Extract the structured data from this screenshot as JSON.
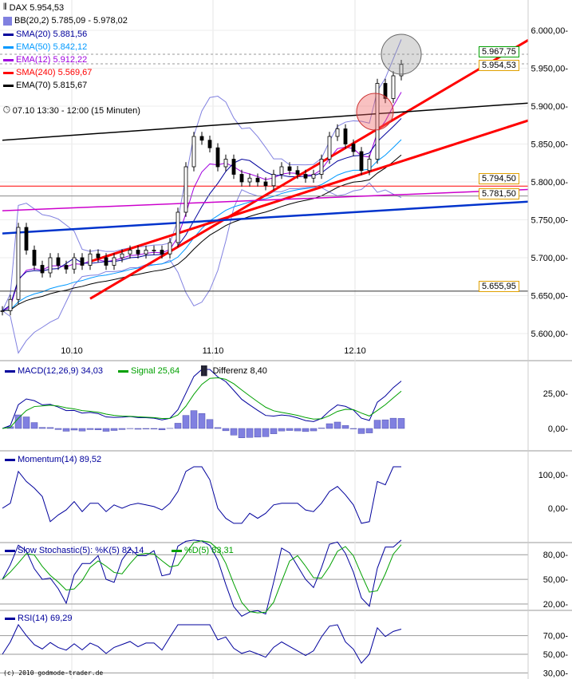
{
  "legend": {
    "dax": "DAX 5.954,53",
    "bb": "BB(20,2) 5.785,09 - 5.978,02",
    "sma20": "SMA(20) 5.881,56",
    "ema50": "EMA(50) 5.842,12",
    "ema12": "EMA(12) 5.912,22",
    "sma240": "SMA(240) 5.569,67",
    "ema70": "EMA(70) 5.815,67",
    "period": "07.10 13:30 - 12:00 (15 Minuten)",
    "macd": "MACD(12,26,9) 34,03",
    "signal": "Signal 25,64",
    "diff": "Differenz 8,40",
    "momentum": "Momentum(14) 89,52",
    "stoch_k": "Slow Stochastic(5): %K(5) 82,14",
    "stoch_d": "%D(5) 83,31",
    "rsi": "RSI(14) 69,29"
  },
  "colors": {
    "sma20": "#00009c",
    "ema50": "#0099ff",
    "ema12": "#a000e0",
    "sma240": "#ff0000",
    "ema70": "#000000",
    "bb": "#8080e0",
    "signal": "#00a000",
    "up_fill": "#a0e0a0",
    "down_fill": "#e0a0a0"
  },
  "price_tags": [
    "5.967,75",
    "5.954,53",
    "5.794,50",
    "5.781,50",
    "5.655,95"
  ],
  "copyright": "(c) 2010 godmode-trader.de",
  "chart_data": {
    "type": "candlestick",
    "x_ticks": [
      "10.10",
      "11.10",
      "12.10"
    ],
    "y_ticks": [
      "6.000,00",
      "5.950,00",
      "5.900,00",
      "5.850,00",
      "5.800,00",
      "5.750,00",
      "5.700,00",
      "5.650,00",
      "5.600,00"
    ],
    "ylim": [
      5590,
      6040
    ],
    "close": [
      5630,
      5645,
      5740,
      5710,
      5690,
      5680,
      5700,
      5690,
      5685,
      5700,
      5690,
      5705,
      5700,
      5690,
      5700,
      5705,
      5710,
      5705,
      5710,
      5710,
      5705,
      5720,
      5760,
      5820,
      5860,
      5855,
      5845,
      5820,
      5830,
      5810,
      5800,
      5805,
      5800,
      5795,
      5810,
      5820,
      5815,
      5810,
      5805,
      5810,
      5830,
      5860,
      5870,
      5850,
      5840,
      5815,
      5830,
      5930,
      5910,
      5940,
      5955
    ],
    "horizontal_lines": [
      5655.95,
      5794.5,
      5781.5
    ],
    "trendlines": [
      {
        "color": "#ff0000",
        "from": [
          11,
          5646
        ],
        "to": [
          66,
          5987
        ]
      },
      {
        "color": "#ff0000",
        "from": [
          11,
          5695
        ],
        "to": [
          66,
          5881
        ]
      },
      {
        "color": "#000000",
        "from": [
          0,
          5855
        ],
        "to": [
          66,
          5904
        ]
      },
      {
        "color": "#0033cc",
        "from": [
          0,
          5732
        ],
        "to": [
          66,
          5774
        ]
      },
      {
        "color": "#cc00cc",
        "from": [
          0,
          5762
        ],
        "to": [
          66,
          5790
        ]
      }
    ],
    "macd_ticks": [
      "25,00",
      "0,00"
    ],
    "momentum_ticks": [
      "100,00",
      "0,00"
    ],
    "stoch_ticks": [
      "80,00",
      "50,00",
      "20,00"
    ],
    "rsi_ticks": [
      "70,00",
      "50,00",
      "30,00"
    ]
  }
}
